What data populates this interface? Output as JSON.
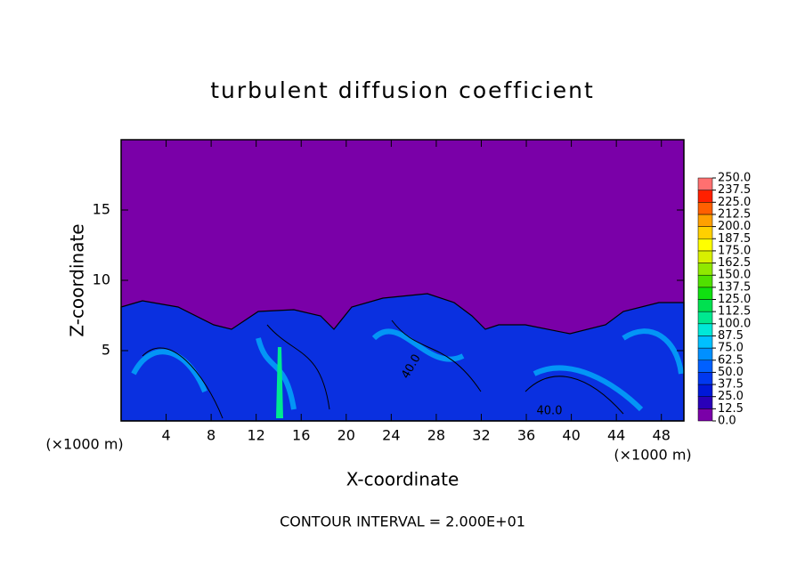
{
  "chart_data": {
    "type": "contour",
    "title": "turbulent diffusion coefficient",
    "x_label": "X-coordinate",
    "y_label": "Z-coordinate",
    "x_unit": "(×1000 m)",
    "xlim": [
      0,
      50
    ],
    "xticks": [
      4,
      8,
      12,
      16,
      20,
      24,
      28,
      32,
      36,
      40,
      44,
      48
    ],
    "ylim": [
      0,
      20
    ],
    "yticks": [
      5,
      10,
      15
    ],
    "contour_labels": [
      "40.0",
      "40.0"
    ],
    "footnote": "CONTOUR INTERVAL = 2.000E+01",
    "colorbar": {
      "ticks": [
        {
          "value": 0,
          "label": "0.0"
        },
        {
          "value": 12.5,
          "label": "12.5"
        },
        {
          "value": 25,
          "label": "25.0"
        },
        {
          "value": 37.5,
          "label": "37.5"
        },
        {
          "value": 50,
          "label": "50.0"
        },
        {
          "value": 62.5,
          "label": "62.5"
        },
        {
          "value": 75,
          "label": "75.0"
        },
        {
          "value": 87.5,
          "label": "87.5"
        },
        {
          "value": 100,
          "label": "100.0"
        },
        {
          "value": 112.5,
          "label": "112.5"
        },
        {
          "value": 125,
          "label": "125.0"
        },
        {
          "value": 137.5,
          "label": "137.5"
        },
        {
          "value": 150,
          "label": "150.0"
        },
        {
          "value": 162.5,
          "label": "162.5"
        },
        {
          "value": 175,
          "label": "175.0"
        },
        {
          "value": 187.5,
          "label": "187.5"
        },
        {
          "value": 200,
          "label": "200.0"
        },
        {
          "value": 212.5,
          "label": "212.5"
        },
        {
          "value": 225,
          "label": "225.0"
        },
        {
          "value": 237.5,
          "label": "237.5"
        },
        {
          "value": 250,
          "label": "250.0"
        }
      ],
      "colors": [
        "#7a00a8",
        "#2a00b8",
        "#0018d8",
        "#0038f0",
        "#0060ff",
        "#0090ff",
        "#00c0ff",
        "#00e8d8",
        "#00e890",
        "#00e050",
        "#10e010",
        "#50e000",
        "#90e800",
        "#d8f000",
        "#ffff00",
        "#ffd000",
        "#ffa000",
        "#ff6000",
        "#ff2000",
        "#ff7070"
      ]
    }
  }
}
